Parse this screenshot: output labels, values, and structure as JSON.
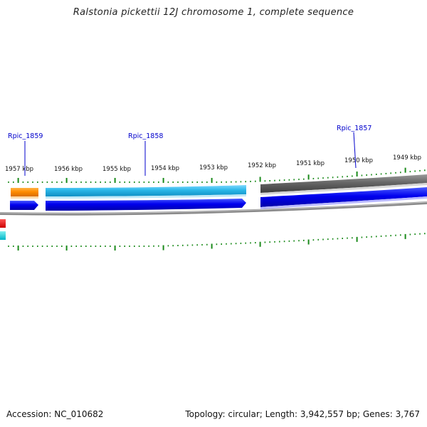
{
  "title": "Ralstonia pickettii 12J chromosome 1, complete sequence",
  "accession_label": "Accession: NC_010682",
  "summary_label": "Topology: circular; Length: 3,942,557 bp; Genes: 3,767",
  "tick_labels": [
    "1957 kbp",
    "1956 kbp",
    "1955 kbp",
    "1954 kbp",
    "1953 kbp",
    "1952 kbp",
    "1951 kbp",
    "1950 kbp",
    "1949 kbp"
  ],
  "gene_labels": [
    "Rpic_1859",
    "Rpic_1858",
    "Rpic_1857"
  ],
  "colors": {
    "backbone": "#8a8a8a",
    "tick_mark": "#1a8a1a",
    "gene_label": "#0000cc",
    "orange_feature": "#ff8c00",
    "cyan_feature": "#2bb7e8",
    "blue_feature": "#0000ee",
    "gray_feature": "#6e6e6e",
    "red_feature": "#ff0000"
  }
}
